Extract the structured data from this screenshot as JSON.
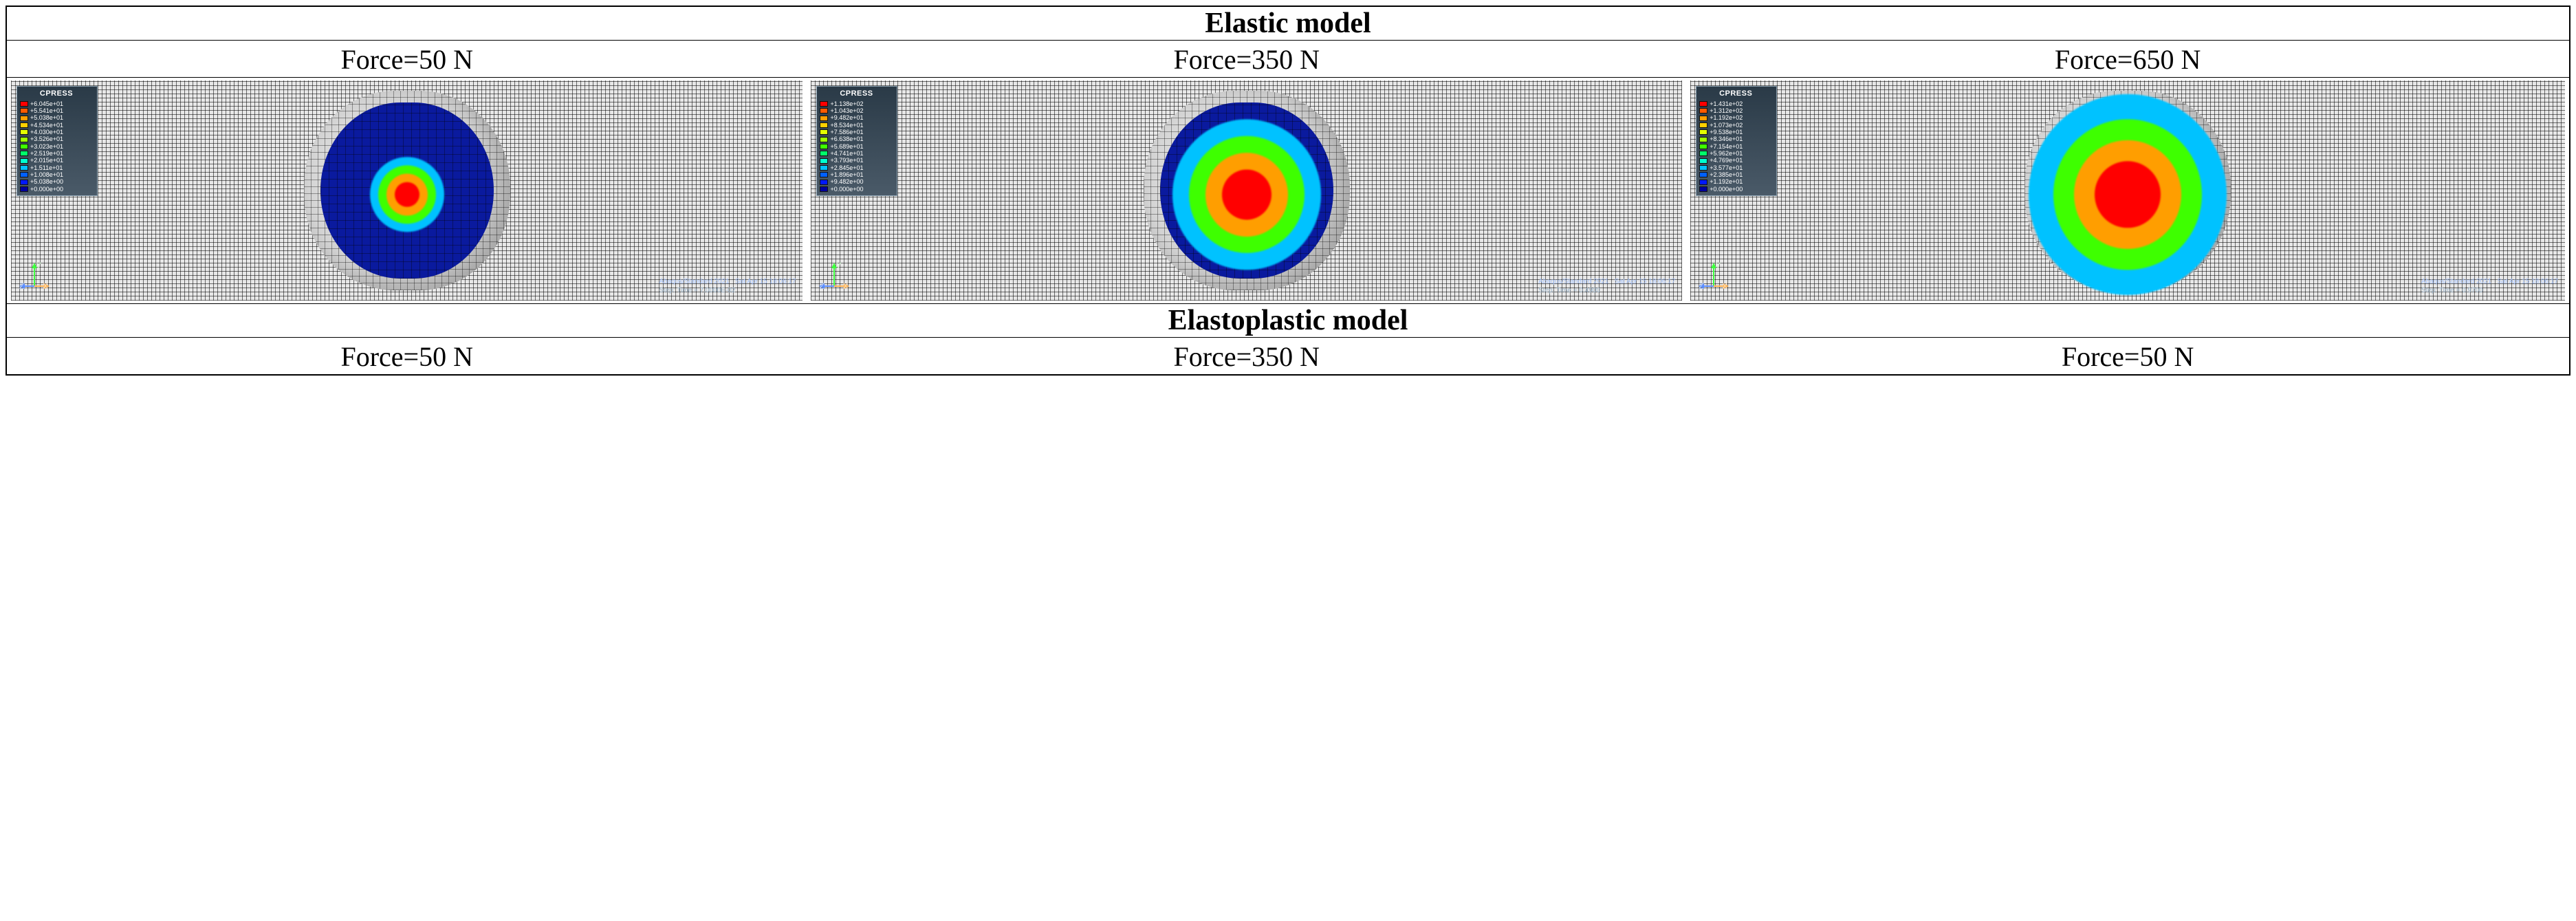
{
  "sections": {
    "elastic_header": "Elastic model",
    "elastoplastic_header": "Elastoplastic model"
  },
  "elastic_forces": [
    "Force=50 N",
    "Force=350 N",
    "Force=650 N"
  ],
  "elastoplastic_forces": [
    "Force=50 N",
    "Force=350 N",
    "Force=50 N"
  ],
  "legend": {
    "title": "CPRESS",
    "colors": [
      "#ff0000",
      "#ff5a00",
      "#ff9e00",
      "#ffd000",
      "#e4ff00",
      "#9eff00",
      "#3eff00",
      "#00ff6a",
      "#00ffd0",
      "#00c2ff",
      "#0060ff",
      "#0018ff",
      "#00009e"
    ]
  },
  "elastic_panels": [
    {
      "legend_values": [
        "+6.045e+01",
        "+5.541e+01",
        "+5.038e+01",
        "+4.534e+01",
        "+4.030e+01",
        "+3.526e+01",
        "+3.023e+01",
        "+2.519e+01",
        "+2.015e+01",
        "+1.511e+01",
        "+1.008e+01",
        "+5.038e+00",
        "+0.000e+00"
      ],
      "hotspot": {
        "radii_pct": [
          6,
          10,
          14,
          18
        ],
        "colors": [
          "#ff0000",
          "#ff9e00",
          "#3eff00",
          "#00c2ff"
        ]
      },
      "software": "Abaqus/Standard 2021",
      "timestamp": "Sat Apr 15 18:06:17",
      "step_time": "7.0000E-02",
      "step_label": "Step: Time ="
    },
    {
      "legend_values": [
        "+1.138e+02",
        "+1.043e+02",
        "+9.482e+01",
        "+8.534e+01",
        "+7.586e+01",
        "+6.638e+01",
        "+5.689e+01",
        "+4.741e+01",
        "+3.793e+01",
        "+2.845e+01",
        "+1.896e+01",
        "+9.482e+00",
        "+0.000e+00"
      ],
      "hotspot": {
        "radii_pct": [
          12,
          20,
          28,
          36
        ],
        "colors": [
          "#ff0000",
          "#ff9e00",
          "#3eff00",
          "#00c2ff"
        ]
      },
      "software": "Abaqus/Standard 2021",
      "timestamp": "Sat Apr 15 18:06:17",
      "step_time": "0.4900",
      "step_label": "Step: Time ="
    },
    {
      "legend_values": [
        "+1.431e+02",
        "+1.312e+02",
        "+1.192e+02",
        "+1.073e+02",
        "+9.538e+01",
        "+8.346e+01",
        "+7.154e+01",
        "+5.962e+01",
        "+4.769e+01",
        "+3.577e+01",
        "+2.385e+01",
        "+1.192e+01",
        "+0.000e+00"
      ],
      "hotspot": {
        "radii_pct": [
          16,
          26,
          36,
          48
        ],
        "colors": [
          "#ff0000",
          "#ff9e00",
          "#3eff00",
          "#00c2ff"
        ]
      },
      "software": "Abaqus/Standard 2021",
      "timestamp": "Sat Apr 15 18:06:17",
      "step_time": "0.9700",
      "step_label": "Step: Time ="
    }
  ],
  "triad": {
    "y": "Y",
    "z": "Z",
    "x": "X"
  },
  "triad_colors": {
    "y": "#3eff3e",
    "z": "#5a8cff",
    "x": "#ffb050"
  }
}
